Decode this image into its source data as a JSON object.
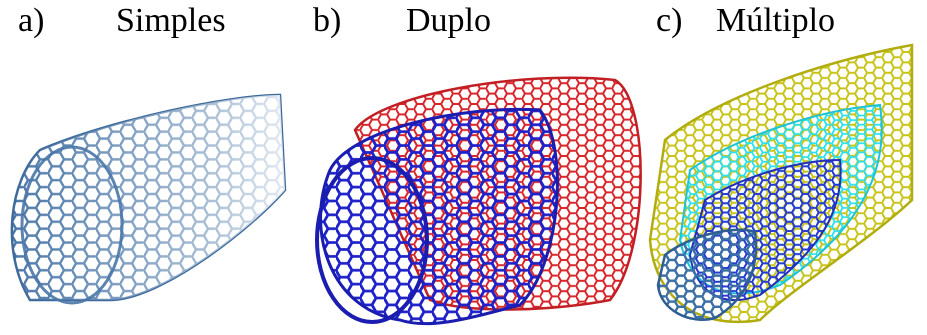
{
  "panels": [
    {
      "tag": "a)",
      "title": "Simples",
      "walls": [
        "#4a77a8"
      ]
    },
    {
      "tag": "b)",
      "title": "Duplo",
      "walls": [
        "#d8262b",
        "#1f22c8"
      ]
    },
    {
      "tag": "c)",
      "title": "Múltiplo",
      "walls": [
        "#c8c41a",
        "#29e0f0",
        "#2b39d0",
        "#3a6fa8"
      ]
    }
  ]
}
